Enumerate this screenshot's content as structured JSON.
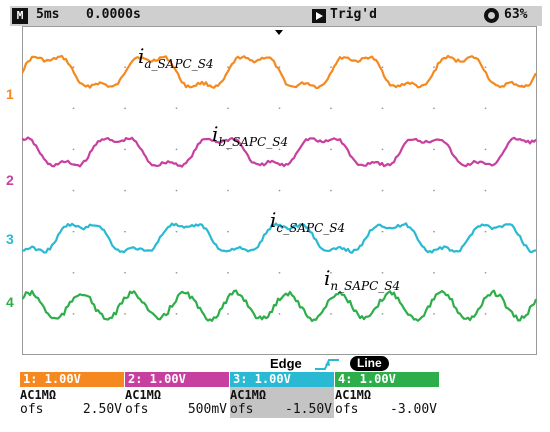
{
  "top_bar": {
    "mode_icon_text": "M",
    "timebase": "5ms",
    "position": "0.0000s",
    "trigger_status": "Trig'd",
    "battery": "63%"
  },
  "traces": [
    {
      "channel": "1",
      "color": "#f5891f",
      "label_main": "i",
      "label_sub": "a_SAPC_S4"
    },
    {
      "channel": "2",
      "color": "#c8409f",
      "label_main": "i",
      "label_sub": "b_SAPC_S4"
    },
    {
      "channel": "3",
      "color": "#2ab9d2",
      "label_main": "i",
      "label_sub": "c_SAPC_S4"
    },
    {
      "channel": "4",
      "color": "#2eae4b",
      "label_main": "i",
      "label_sub": "n_SAPC_S4"
    }
  ],
  "trigger": {
    "type": "Edge",
    "source": "Line"
  },
  "channels": [
    {
      "header": "1: 1.00V",
      "coupling": "AC1MΩ",
      "ofs_label": "ofs",
      "ofs_value": "2.50V",
      "color": "#f5891f"
    },
    {
      "header": "2: 1.00V",
      "coupling": "AC1MΩ",
      "ofs_label": "ofs",
      "ofs_value": "500mV",
      "color": "#c8409f"
    },
    {
      "header": "3: 1.00V",
      "coupling": "AC1MΩ",
      "ofs_label": "ofs",
      "ofs_value": "-1.50V",
      "color": "#2ab9d2"
    },
    {
      "header": "4: 1.00V",
      "coupling": "AC1MΩ",
      "ofs_label": "ofs",
      "ofs_value": "-3.00V",
      "color": "#2eae4b"
    }
  ]
}
